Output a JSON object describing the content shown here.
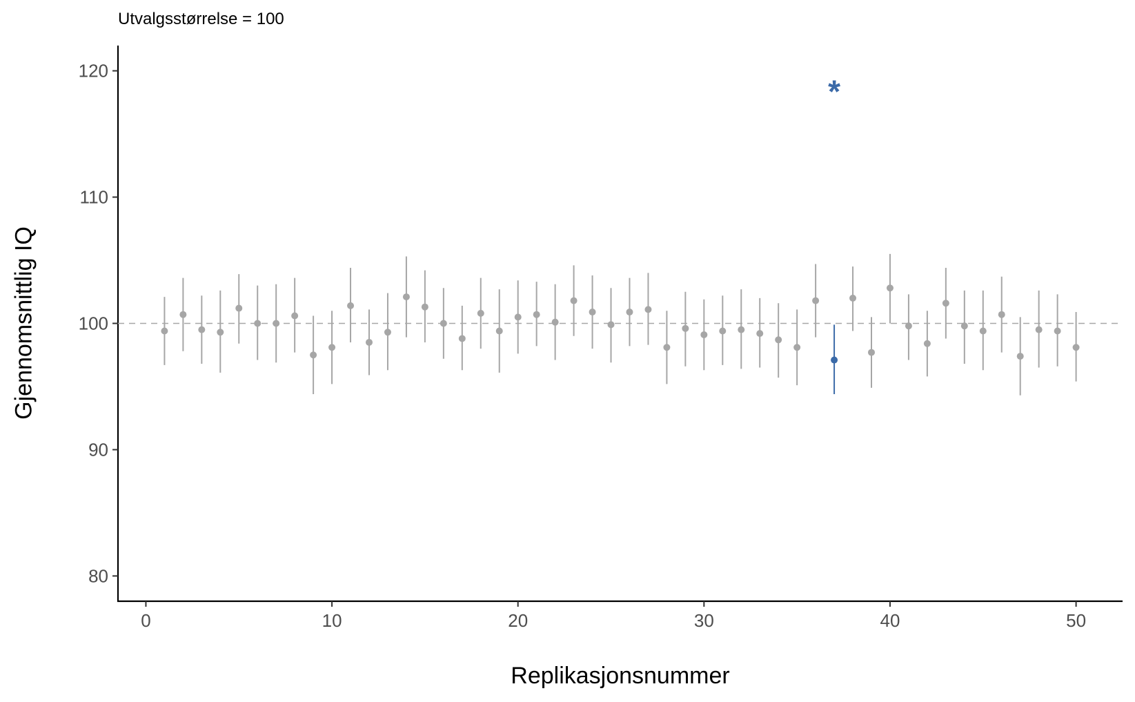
{
  "subtitle": "Utvalgsstørrelse = 100",
  "chart_data": {
    "type": "scatter",
    "subtitle": "Utvalgsstørrelse = 100",
    "xlabel": "Replikasjonsnummer",
    "ylabel": "Gjennomsnittlig IQ",
    "xlim": [
      -1.5,
      52.5
    ],
    "ylim": [
      78,
      122
    ],
    "x_ticks": [
      0,
      10,
      20,
      30,
      40,
      50
    ],
    "y_ticks": [
      80,
      90,
      100,
      110,
      120
    ],
    "reference_line": 100,
    "grid": false,
    "colors": {
      "normal": "#a6a6a6",
      "highlight": "#3b6aa8",
      "refline": "#a6a6a6",
      "axis": "#000000",
      "tick_label": "#4d4d4d"
    },
    "highlight_index": 37,
    "highlight_marker": "*",
    "highlight_marker_y": 118.7,
    "x": [
      1,
      2,
      3,
      4,
      5,
      6,
      7,
      8,
      9,
      10,
      11,
      12,
      13,
      14,
      15,
      16,
      17,
      18,
      19,
      20,
      21,
      22,
      23,
      24,
      25,
      26,
      27,
      28,
      29,
      30,
      31,
      32,
      33,
      34,
      35,
      36,
      37,
      38,
      39,
      40,
      41,
      42,
      43,
      44,
      45,
      46,
      47,
      48,
      49,
      50
    ],
    "mean": [
      99.4,
      100.7,
      99.5,
      99.3,
      101.2,
      100.0,
      100.0,
      100.6,
      97.5,
      98.1,
      101.4,
      98.5,
      99.3,
      102.1,
      101.3,
      100.0,
      98.8,
      100.8,
      99.4,
      100.5,
      100.7,
      100.1,
      101.8,
      100.9,
      99.9,
      100.9,
      101.1,
      98.1,
      99.6,
      99.1,
      99.4,
      99.5,
      99.2,
      98.7,
      98.1,
      101.8,
      97.1,
      102.0,
      97.7,
      102.8,
      99.8,
      98.4,
      101.6,
      99.8,
      99.4,
      100.7,
      97.4,
      99.5,
      99.4,
      98.1
    ],
    "lower": [
      96.7,
      97.8,
      96.8,
      96.1,
      98.4,
      97.1,
      96.9,
      97.7,
      94.4,
      95.2,
      98.5,
      95.9,
      96.3,
      98.9,
      98.5,
      97.2,
      96.3,
      98.0,
      96.1,
      97.6,
      98.2,
      97.1,
      99.0,
      98.0,
      96.9,
      98.2,
      98.3,
      95.2,
      96.6,
      96.3,
      96.7,
      96.4,
      96.5,
      95.7,
      95.1,
      98.9,
      94.4,
      99.4,
      94.9,
      100.0,
      97.1,
      95.8,
      98.8,
      96.8,
      96.3,
      97.7,
      94.3,
      96.5,
      96.6,
      95.4
    ],
    "upper": [
      102.1,
      103.6,
      102.2,
      102.6,
      103.9,
      103.0,
      103.1,
      103.6,
      100.6,
      101.0,
      104.4,
      101.1,
      102.4,
      105.3,
      104.2,
      102.8,
      101.4,
      103.6,
      102.7,
      103.4,
      103.3,
      103.1,
      104.6,
      103.8,
      102.8,
      103.6,
      104.0,
      101.0,
      102.5,
      101.9,
      102.2,
      102.7,
      102.0,
      101.6,
      101.1,
      104.7,
      99.9,
      104.5,
      100.5,
      105.5,
      102.3,
      101.0,
      104.4,
      102.6,
      102.6,
      103.7,
      100.5,
      102.6,
      102.3,
      100.9
    ]
  }
}
